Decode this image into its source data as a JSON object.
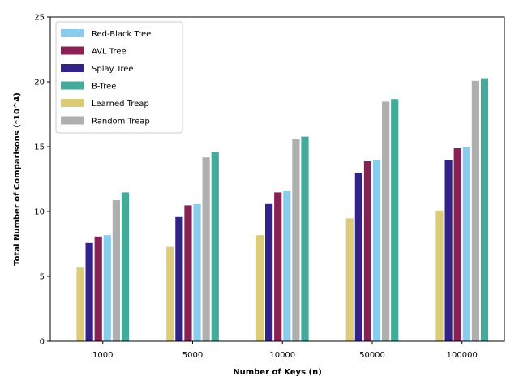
{
  "chart_data": {
    "type": "bar",
    "xlabel": "Number of Keys (n)",
    "ylabel": "Total Number of Comparisons (*10^4)",
    "ylim": [
      0,
      25
    ],
    "yticks": [
      0,
      5,
      10,
      15,
      20,
      25
    ],
    "categories": [
      "1000",
      "5000",
      "10000",
      "50000",
      "100000"
    ],
    "grid": false,
    "legend_position": "top-left",
    "legend_order": [
      "Red-Black Tree",
      "AVL Tree",
      "Splay Tree",
      "B-Tree",
      "Learned Treap",
      "Random Treap"
    ],
    "series": [
      {
        "name": "Learned Treap",
        "color": "#DDCC77",
        "values": [
          5.7,
          7.3,
          8.2,
          9.5,
          10.1
        ]
      },
      {
        "name": "Splay Tree",
        "color": "#332288",
        "values": [
          7.6,
          9.6,
          10.6,
          13.0,
          14.0
        ]
      },
      {
        "name": "AVL Tree",
        "color": "#882255",
        "values": [
          8.1,
          10.5,
          11.5,
          13.9,
          14.9
        ]
      },
      {
        "name": "Red-Black Tree",
        "color": "#88CCEE",
        "values": [
          8.2,
          10.6,
          11.6,
          14.0,
          15.0
        ]
      },
      {
        "name": "Random Treap",
        "color": "#AFAFAF",
        "values": [
          10.9,
          14.2,
          15.6,
          18.5,
          20.1
        ]
      },
      {
        "name": "B-Tree",
        "color": "#44AA99",
        "values": [
          11.5,
          14.6,
          15.8,
          18.7,
          20.3
        ]
      }
    ]
  }
}
